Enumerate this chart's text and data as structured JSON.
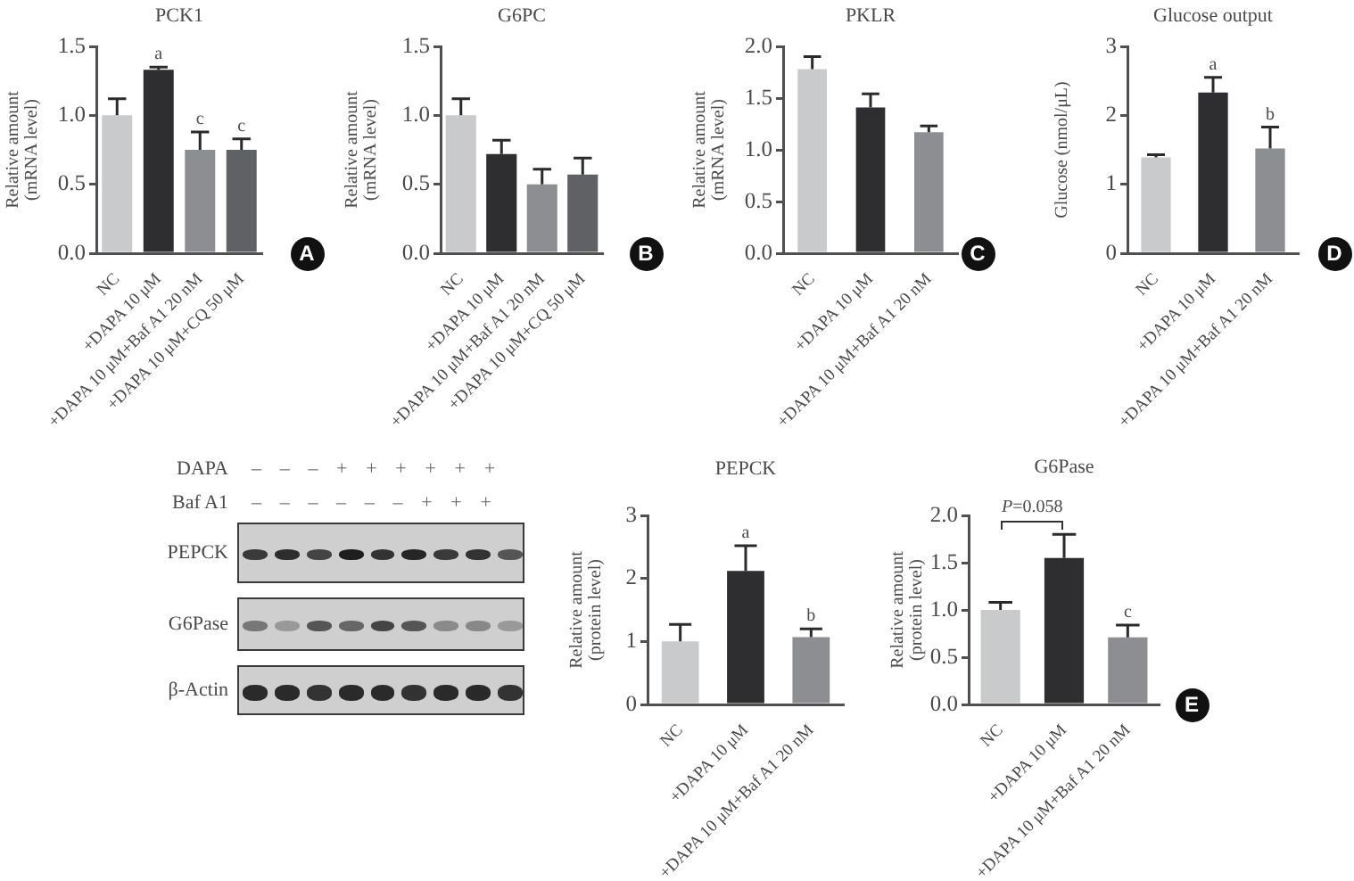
{
  "chart_data": [
    {
      "type": "bar",
      "title": "PCK1",
      "ylabel": "Relative amount\n(mRNA level)",
      "categories": [
        "NC",
        "+DAPA 10 μM",
        "+DAPA 10 μM+Baf A1 20 nM",
        "+DAPA 10 μM+CQ 50 μM"
      ],
      "values": [
        1.0,
        1.33,
        0.75,
        0.75
      ],
      "colors": [
        "#c9cacc",
        "#2e2e31",
        "#8d8e91",
        "#606164"
      ],
      "errors": [
        [
          1.0,
          1.12
        ],
        [
          1.33,
          1.35
        ],
        [
          0.75,
          0.88
        ],
        [
          0.75,
          0.83
        ]
      ],
      "ylim": [
        0,
        1.5
      ],
      "yticks": [
        {
          "value": 0,
          "label": "0.0"
        },
        0.5,
        {
          "value": 1,
          "label": "1.0"
        },
        1.5
      ],
      "annotations": [
        {
          "text": "a",
          "x": "+DAPA 10 μM",
          "y": 1.35
        },
        {
          "text": "c",
          "x": "+DAPA 10 μM+Baf A1 20 nM",
          "y": 0.88
        },
        {
          "text": "c",
          "x": "+DAPA 10 μM+CQ 50 μM",
          "y": 0.83
        },
        "A"
      ]
    },
    {
      "type": "bar",
      "title": "G6PC",
      "ylabel": "Relative amount\n(mRNA level)",
      "categories": [
        "NC",
        "+DAPA 10 μM",
        "+DAPA 10 μM+Baf A1 20 nM",
        "+DAPA 10 μM+CQ 50 μM"
      ],
      "values": [
        1.0,
        0.72,
        0.5,
        0.57
      ],
      "colors": [
        "#c9cacc",
        "#2e2e31",
        "#8d8e91",
        "#606164"
      ],
      "errors": [
        [
          1.0,
          1.12
        ],
        [
          0.72,
          0.82
        ],
        [
          0.5,
          0.61
        ],
        [
          0.57,
          0.69
        ]
      ],
      "ylim": [
        0,
        1.5
      ],
      "yticks": [
        {
          "value": 0,
          "label": "0.0"
        },
        0.5,
        {
          "value": 1,
          "label": "1.0"
        },
        1.5
      ],
      "annotations": [
        "B"
      ]
    },
    {
      "type": "bar",
      "title": "PKLR",
      "ylabel": "Relative amount\n(mRNA level)",
      "categories": [
        "NC",
        "+DAPA 10 μM",
        "+DAPA 10 μM+Baf A1 20 nM"
      ],
      "values": [
        1.78,
        1.41,
        1.17
      ],
      "colors": [
        "#c9cacc",
        "#2e2e31",
        "#8d8e91"
      ],
      "errors": [
        [
          1.78,
          1.9
        ],
        [
          1.41,
          1.54
        ],
        [
          1.17,
          1.23
        ]
      ],
      "ylim": [
        0,
        2
      ],
      "yticks": [
        {
          "value": 0,
          "label": "0.0"
        },
        0.5,
        {
          "value": 1,
          "label": "1.0"
        },
        1.5,
        {
          "value": 2,
          "label": "2.0"
        }
      ],
      "annotations": [
        "C"
      ]
    },
    {
      "type": "bar",
      "title": "Glucose output",
      "ylabel": "Glucose (nmol/μL)",
      "categories": [
        "NC",
        "+DAPA 10 μM",
        "+DAPA 10 μM+Baf A1 20 nM"
      ],
      "values": [
        1.39,
        2.33,
        1.52
      ],
      "colors": [
        "#c9cacc",
        "#2e2e31",
        "#8d8e91"
      ],
      "errors": [
        [
          1.39,
          1.43
        ],
        [
          2.33,
          2.55
        ],
        [
          1.52,
          1.83
        ]
      ],
      "ylim": [
        0,
        3
      ],
      "yticks": [
        0,
        1,
        2,
        3
      ],
      "annotations": [
        {
          "text": "a",
          "x": "+DAPA 10 μM",
          "y": 2.55
        },
        {
          "text": "b",
          "x": "+DAPA 10 μM+Baf A1 20 nM",
          "y": 1.83
        },
        "D"
      ]
    },
    {
      "type": "other",
      "annotations": [
        "DAPA",
        "– – – + + + + + +",
        "Baf A1",
        "– – – – – – + + +",
        "PEPCK",
        "G6Pase",
        "β-Actin"
      ]
    },
    {
      "type": "bar",
      "title": "PEPCK",
      "ylabel": "Relative amount\n(protein level)",
      "categories": [
        "NC",
        "+DAPA 10 μM",
        "+DAPA 10 μM+Baf A1 20 nM"
      ],
      "values": [
        1.0,
        2.12,
        1.07
      ],
      "colors": [
        "#c9cacc",
        "#2e2e31",
        "#8d8e91"
      ],
      "errors": [
        [
          1.0,
          1.27
        ],
        [
          2.12,
          2.52
        ],
        [
          1.07,
          1.2
        ]
      ],
      "ylim": [
        0,
        3
      ],
      "yticks": [
        0,
        1,
        2,
        3
      ],
      "annotations": [
        {
          "text": "a",
          "x": "+DAPA 10 μM",
          "y": 2.52
        },
        {
          "text": "b",
          "x": "+DAPA 10 μM+Baf A1 20 nM",
          "y": 1.2
        }
      ]
    },
    {
      "type": "bar",
      "title": "G6Pase",
      "ylabel": "Relative amount\n(protein level)",
      "categories": [
        "NC",
        "+DAPA 10 μM",
        "+DAPA 10 μM+Baf A1 20 nM"
      ],
      "values": [
        1.0,
        1.55,
        0.71
      ],
      "colors": [
        "#c9cacc",
        "#2e2e31",
        "#8d8e91"
      ],
      "errors": [
        [
          1.0,
          1.08
        ],
        [
          1.55,
          1.8
        ],
        [
          0.71,
          0.84
        ]
      ],
      "ylim": [
        0,
        2
      ],
      "yticks": [
        {
          "value": 0,
          "label": "0.0"
        },
        0.5,
        {
          "value": 1,
          "label": "1.0"
        },
        1.5,
        {
          "value": 2,
          "label": "2.0"
        }
      ],
      "annotations": [
        {
          "text": "c",
          "x": "+DAPA 10 μM+Baf A1 20 nM",
          "y": 0.84
        },
        "P=0.058",
        "E"
      ]
    }
  ]
}
